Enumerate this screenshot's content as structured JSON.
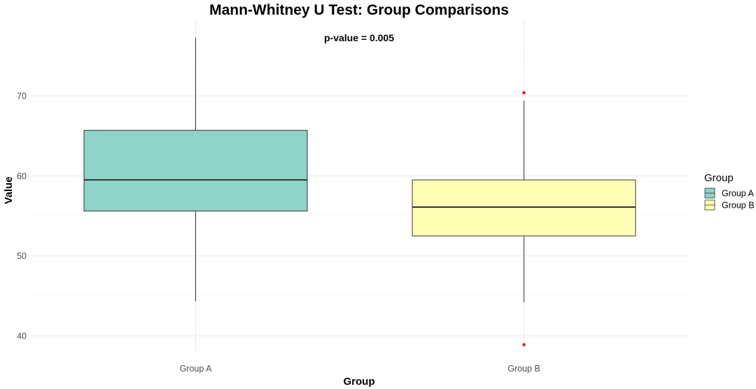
{
  "chart_data": {
    "type": "box",
    "title": "Mann-Whitney U Test: Group Comparisons",
    "annotation": "p-value = 0.005",
    "xlabel": "Group",
    "ylabel": "Value",
    "categories": [
      "Group A",
      "Group B"
    ],
    "ylim": [
      37.5,
      79
    ],
    "yticks": [
      40,
      50,
      60,
      70
    ],
    "grid": true,
    "legend": {
      "title": "Group",
      "position": "right",
      "entries": [
        "Group A",
        "Group B"
      ]
    },
    "series": [
      {
        "category": "Group A",
        "color": "#8dd3c7",
        "whisker_low": 44.3,
        "q1": 55.6,
        "median": 59.5,
        "q3": 65.7,
        "whisker_high": 77.3,
        "outliers": []
      },
      {
        "category": "Group B",
        "color": "#ffffb3",
        "whisker_low": 44.2,
        "q1": 52.5,
        "median": 56.1,
        "q3": 59.5,
        "whisker_high": 69.4,
        "outliers": [
          70.4,
          38.9
        ]
      }
    ],
    "outlier_color": "#ff0000"
  }
}
